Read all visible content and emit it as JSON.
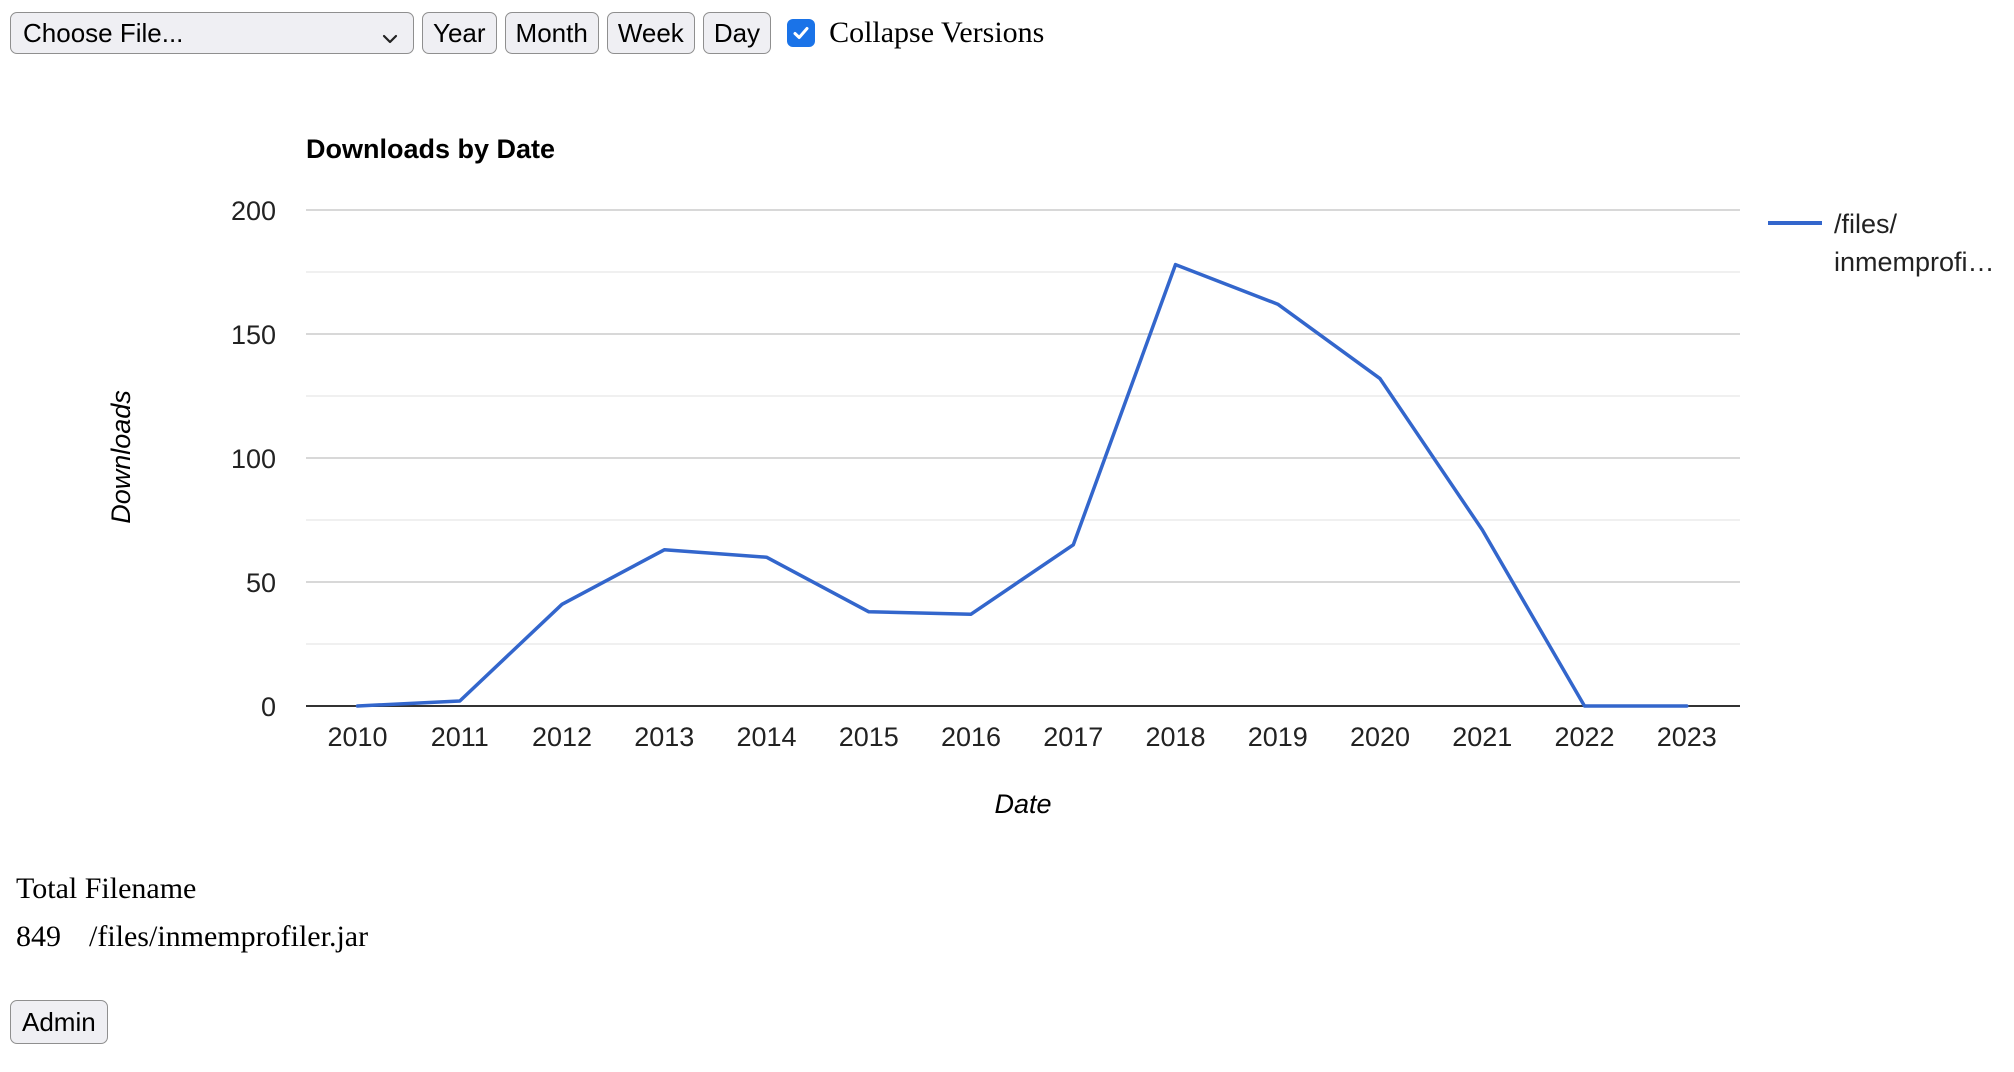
{
  "toolbar": {
    "file_select": {
      "value": "Choose File..."
    },
    "buttons": {
      "year": "Year",
      "month": "Month",
      "week": "Week",
      "day": "Day"
    },
    "collapse_versions": {
      "label": "Collapse Versions",
      "checked": true
    }
  },
  "chart_data": {
    "type": "line",
    "title": "Downloads by Date",
    "xlabel": "Date",
    "ylabel": "Downloads",
    "x": [
      "2010",
      "2011",
      "2012",
      "2013",
      "2014",
      "2015",
      "2016",
      "2017",
      "2018",
      "2019",
      "2020",
      "2021",
      "2022",
      "2023"
    ],
    "series": [
      {
        "name": "/files/inmemprofiler.jar",
        "legend_lines": [
          "/files/",
          "inmemprofi…"
        ],
        "color": "#3366cc",
        "values": [
          0,
          2,
          41,
          63,
          60,
          38,
          37,
          65,
          178,
          162,
          132,
          71,
          0,
          0
        ]
      }
    ],
    "ylim": [
      0,
      200
    ],
    "yticks": [
      0,
      50,
      100,
      150,
      200
    ],
    "grid": true,
    "legend": "right"
  },
  "totals": {
    "header": {
      "total": "Total",
      "filename": "Filename"
    },
    "rows": [
      {
        "total": "849",
        "filename": "/files/inmemprofiler.jar"
      }
    ]
  },
  "admin_button": "Admin"
}
